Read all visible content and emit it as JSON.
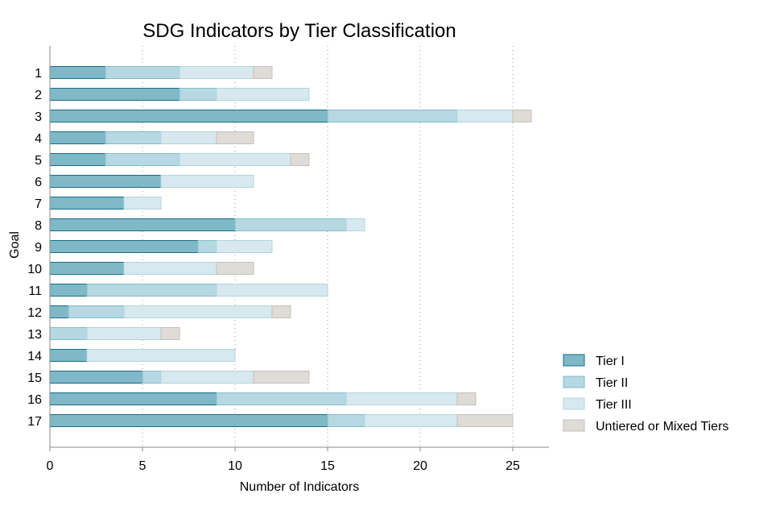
{
  "chart_data": {
    "type": "bar",
    "orientation": "horizontal",
    "stacked": true,
    "title": "SDG Indicators by Tier Classification",
    "xlabel": "Number of Indicators",
    "ylabel": "Goal",
    "categories": [
      "1",
      "2",
      "3",
      "4",
      "5",
      "6",
      "7",
      "8",
      "9",
      "10",
      "11",
      "12",
      "13",
      "14",
      "15",
      "16",
      "17"
    ],
    "series": [
      {
        "name": "Tier I",
        "color": "#7fb8c7",
        "stroke": "#1a6d86",
        "values": [
          3,
          7,
          15,
          3,
          3,
          6,
          4,
          10,
          8,
          4,
          2,
          1,
          0,
          2,
          5,
          9,
          15
        ]
      },
      {
        "name": "Tier II",
        "color": "#b5d8e2",
        "stroke": "#87bccd",
        "values": [
          4,
          2,
          7,
          3,
          4,
          0,
          0,
          6,
          1,
          0,
          7,
          3,
          2,
          0,
          1,
          7,
          2
        ]
      },
      {
        "name": "Tier III",
        "color": "#d7e9ef",
        "stroke": "#b3d4df",
        "values": [
          4,
          5,
          3,
          3,
          6,
          5,
          2,
          1,
          3,
          5,
          6,
          8,
          4,
          8,
          5,
          6,
          5
        ]
      },
      {
        "name": "Untiered or Mixed Tiers",
        "color": "#dfdbd7",
        "stroke": "#c5c0bb",
        "values": [
          1,
          0,
          1,
          2,
          1,
          0,
          0,
          0,
          0,
          2,
          0,
          1,
          1,
          0,
          3,
          1,
          3
        ]
      }
    ],
    "xlim": [
      0,
      27
    ],
    "xticks": [
      0,
      5,
      10,
      15,
      20,
      25
    ],
    "grid": "vertical-dotted",
    "legend_position": "bottom-right"
  }
}
